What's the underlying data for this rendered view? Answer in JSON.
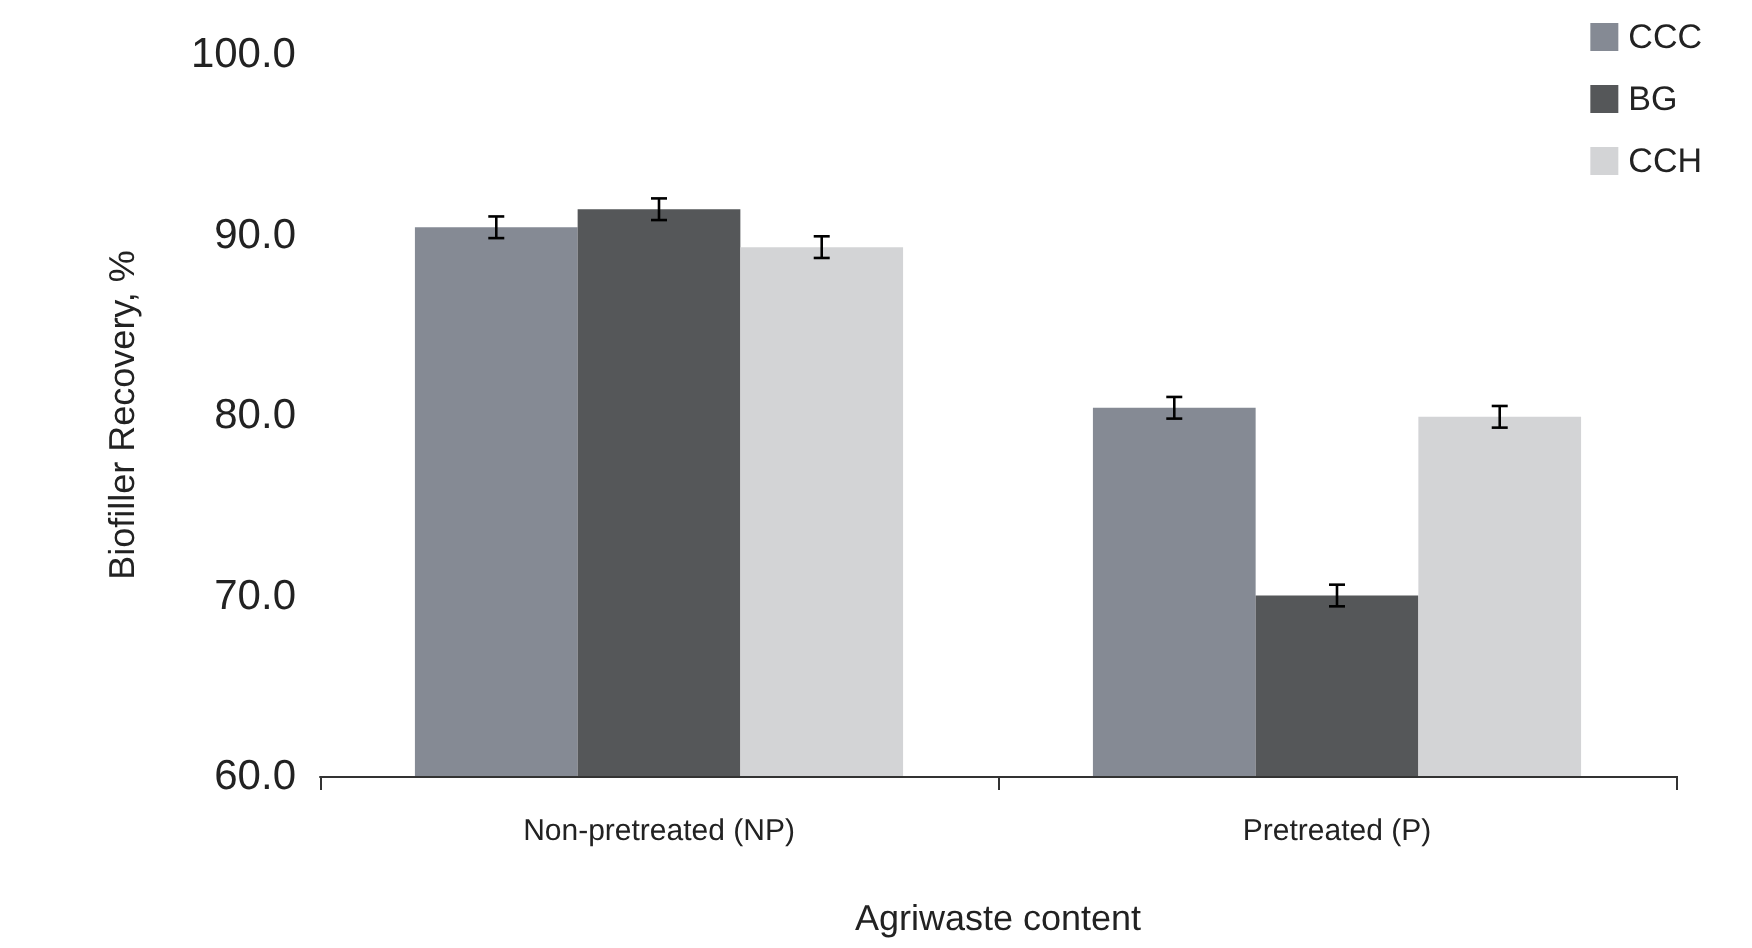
{
  "chart_data": {
    "type": "bar",
    "xlabel": "Agriwaste content",
    "ylabel": "Biofiller Recovery, %",
    "categories": [
      "Non-pretreated (NP)",
      "Pretreated (P)"
    ],
    "series": [
      {
        "name": "CCC",
        "color": "#858a94",
        "values": [
          90.4,
          80.4
        ],
        "errors": [
          0.6,
          0.6
        ]
      },
      {
        "name": "BG",
        "color": "#555759",
        "values": [
          91.4,
          70.0
        ],
        "errors": [
          0.6,
          0.6
        ]
      },
      {
        "name": "CCH",
        "color": "#d3d4d6",
        "values": [
          89.3,
          79.9
        ],
        "errors": [
          0.6,
          0.6
        ]
      }
    ],
    "ylim": [
      60,
      100
    ],
    "yticks": [
      {
        "value": 60,
        "label": "60.0"
      },
      {
        "value": 70,
        "label": "70.0"
      },
      {
        "value": 80,
        "label": "80.0"
      },
      {
        "value": 90,
        "label": "90.0"
      },
      {
        "value": 100,
        "label": "100.0"
      }
    ],
    "grid": false,
    "legend": "top right"
  }
}
